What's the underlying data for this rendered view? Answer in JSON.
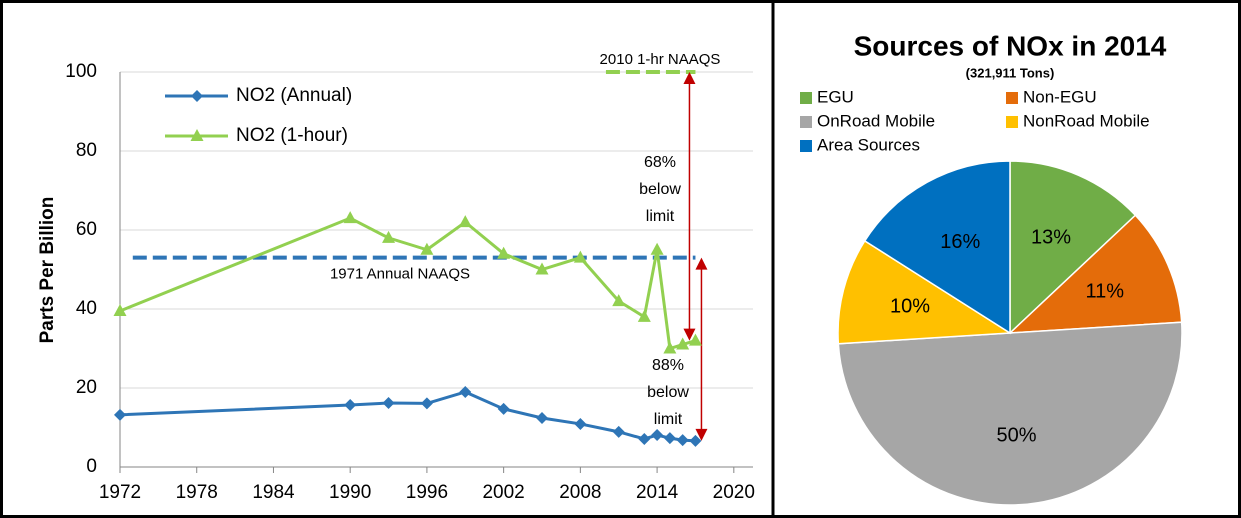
{
  "chart_data": [
    {
      "type": "line",
      "y_label": "Parts Per Billion",
      "x": [
        1972,
        1990,
        1993,
        1996,
        1999,
        2002,
        2005,
        2008,
        2011,
        2013,
        2014,
        2015,
        2016,
        2017
      ],
      "series": [
        {
          "name": "NO2 (Annual)",
          "color": "#2e75b6",
          "marker": "diamond",
          "values": [
            13.2,
            15.7,
            16.2,
            16.1,
            19,
            14.7,
            12.4,
            10.9,
            8.9,
            7.1,
            8.1,
            7.3,
            6.8,
            6.6
          ]
        },
        {
          "name": "NO2 (1-hour)",
          "color": "#92d050",
          "marker": "triangle",
          "values": [
            39.5,
            63,
            58,
            55,
            62,
            54,
            50,
            53,
            42,
            38,
            55,
            30,
            31,
            32
          ]
        }
      ],
      "xlim": [
        1972,
        2021.5
      ],
      "xticks": [
        1972,
        1978,
        1984,
        1990,
        1996,
        2002,
        2008,
        2014,
        2020
      ],
      "ylim": [
        0,
        100
      ],
      "yticks": [
        0,
        20,
        40,
        60,
        80,
        100
      ],
      "grid": true,
      "reference_lines": [
        {
          "label": "1971 Annual NAAQS",
          "value": 53,
          "x": [
            1973,
            2017
          ],
          "color": "#2e75b6",
          "note": [
            "88%",
            "below",
            "limit"
          ]
        },
        {
          "label": "2010 1-hr NAAQS",
          "value": 100,
          "x": [
            2010,
            2017
          ],
          "color": "#92d050",
          "note": [
            "68%",
            "below",
            "limit"
          ]
        }
      ],
      "note_color": "#c00000"
    },
    {
      "type": "pie",
      "title": "Sources of NOx in 2014",
      "subtitle": "(321,911 Tons)",
      "categories": [
        "EGU",
        "Non-EGU",
        "OnRoad Mobile",
        "NonRoad Mobile",
        "Area Sources"
      ],
      "values": [
        13,
        11,
        50,
        10,
        16
      ],
      "value_labels": [
        "13%",
        "11%",
        "50%",
        "10%",
        "16%"
      ],
      "colors": [
        "#70ad47",
        "#e46c0a",
        "#a6a6a6",
        "#ffc000",
        "#0070c0"
      ]
    }
  ]
}
